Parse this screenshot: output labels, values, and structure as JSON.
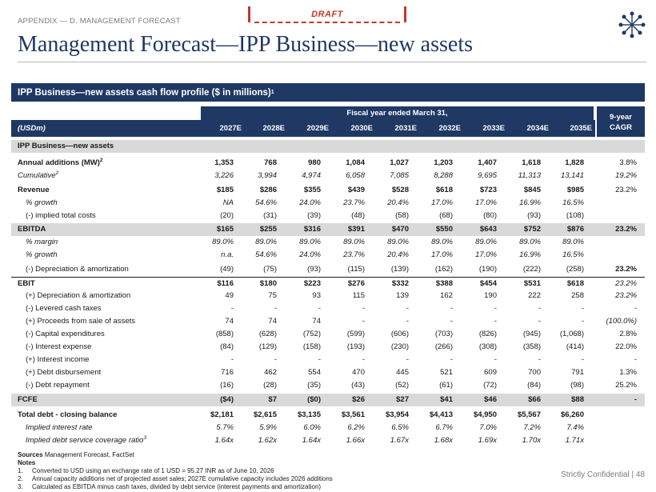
{
  "header": {
    "breadcrumb": "APPENDIX — D. MANAGEMENT FORECAST",
    "draft_label": "DRAFT",
    "title": "Management Forecast—IPP Business—new assets"
  },
  "section": {
    "title": "IPP Business—new assets cash flow profile ($ in millions)",
    "sup": "1"
  },
  "table": {
    "fiscal_label": "Fiscal year ended March 31,",
    "cagr_label_1": "9-year",
    "cagr_label_2": "CAGR",
    "unit_label": "(USDm)",
    "years": [
      "2027E",
      "2028E",
      "2029E",
      "2030E",
      "2031E",
      "2032E",
      "2033E",
      "2034E",
      "2035E"
    ],
    "group_label": "IPP Business—new assets",
    "rows": [
      {
        "label": "Annual additions (MW)",
        "sup": "2",
        "style": "bold-label",
        "values": [
          "1,353",
          "768",
          "980",
          "1,084",
          "1,027",
          "1,203",
          "1,407",
          "1,618",
          "1,828"
        ],
        "cagr": "3.8%"
      },
      {
        "label": "Cumulative",
        "sup": "2",
        "style": "ital",
        "values": [
          "3,226",
          "3,994",
          "4,974",
          "6,058",
          "7,085",
          "8,288",
          "9,695",
          "11,313",
          "13,141"
        ],
        "cagr": "19.2%"
      },
      {
        "label": "Revenue",
        "style": "bold",
        "values": [
          "$185",
          "$286",
          "$355",
          "$439",
          "$528",
          "$618",
          "$723",
          "$845",
          "$985"
        ],
        "cagr": "23.2%"
      },
      {
        "label": "% growth",
        "style": "ital-indent",
        "values": [
          "NA",
          "54.6%",
          "24.0%",
          "23.7%",
          "20.4%",
          "17.0%",
          "17.0%",
          "16.9%",
          "16.5%"
        ],
        "cagr": ""
      },
      {
        "label": "(-) implied total costs",
        "style": "indent",
        "values": [
          "(20)",
          "(31)",
          "(39)",
          "(48)",
          "(58)",
          "(68)",
          "(80)",
          "(93)",
          "(108)"
        ],
        "cagr": ""
      },
      {
        "label": "EBITDA",
        "style": "bold-hl",
        "values": [
          "$165",
          "$255",
          "$316",
          "$391",
          "$470",
          "$550",
          "$643",
          "$752",
          "$876"
        ],
        "cagr": "23.2%",
        "cagr_style": "bold"
      },
      {
        "label": "% margin",
        "style": "ital-indent",
        "values": [
          "89.0%",
          "89.0%",
          "89.0%",
          "89.0%",
          "89.0%",
          "89.0%",
          "89.0%",
          "89.0%",
          "89.0%"
        ],
        "cagr": ""
      },
      {
        "label": "% growth",
        "style": "ital-indent",
        "values": [
          "n.a.",
          "54.6%",
          "24.0%",
          "23.7%",
          "20.4%",
          "17.0%",
          "17.0%",
          "16.9%",
          "16.5%"
        ],
        "cagr": ""
      },
      {
        "label": "(-) Depreciation & amortization",
        "style": "indent",
        "values": [
          "(49)",
          "(75)",
          "(93)",
          "(115)",
          "(139)",
          "(162)",
          "(190)",
          "(222)",
          "(258)"
        ],
        "cagr": "23.2%",
        "cagr_style": "bold"
      },
      {
        "label": "EBIT",
        "style": "bold-topline",
        "values": [
          "$116",
          "$180",
          "$223",
          "$276",
          "$332",
          "$388",
          "$454",
          "$531",
          "$618"
        ],
        "cagr": "23.2%",
        "cagr_style": "ital"
      },
      {
        "label": "(+) Depreciation & amortization",
        "style": "indent",
        "values": [
          "49",
          "75",
          "93",
          "115",
          "139",
          "162",
          "190",
          "222",
          "258"
        ],
        "cagr": "23.2%",
        "cagr_style": "ital"
      },
      {
        "label": "(-) Levered cash taxes",
        "style": "indent",
        "values": [
          "-",
          "-",
          "-",
          "-",
          "-",
          "-",
          "-",
          "-",
          "-"
        ],
        "cagr": "-"
      },
      {
        "label": "(+) Proceeds from sale of assets",
        "style": "indent",
        "values": [
          "74",
          "74",
          "74",
          "-",
          "-",
          "-",
          "-",
          "-",
          "-"
        ],
        "cagr": "(100.0%)",
        "cagr_style": "ital"
      },
      {
        "label": "(-) Capital expenditures",
        "style": "indent",
        "values": [
          "(858)",
          "(628)",
          "(752)",
          "(599)",
          "(606)",
          "(703)",
          "(826)",
          "(945)",
          "(1,068)"
        ],
        "cagr": "2.8%"
      },
      {
        "label": "(-) Interest expense",
        "style": "indent",
        "values": [
          "(84)",
          "(129)",
          "(158)",
          "(193)",
          "(230)",
          "(266)",
          "(308)",
          "(358)",
          "(414)"
        ],
        "cagr": "22.0%"
      },
      {
        "label": "(+) Interest income",
        "style": "indent",
        "values": [
          "-",
          "-",
          "-",
          "-",
          "-",
          "-",
          "-",
          "-",
          "-"
        ],
        "cagr": "-"
      },
      {
        "label": "(+) Debt disbursement",
        "style": "indent",
        "values": [
          "716",
          "462",
          "554",
          "470",
          "445",
          "521",
          "609",
          "700",
          "791"
        ],
        "cagr": "1.3%"
      },
      {
        "label": "(-) Debt repayment",
        "style": "indent",
        "values": [
          "(16)",
          "(28)",
          "(35)",
          "(43)",
          "(52)",
          "(61)",
          "(72)",
          "(84)",
          "(98)"
        ],
        "cagr": "25.2%"
      },
      {
        "label": "FCFE",
        "style": "bold-hl",
        "values": [
          "($4)",
          "$7",
          "($0)",
          "$26",
          "$27",
          "$41",
          "$46",
          "$66",
          "$88"
        ],
        "cagr": "-",
        "cagr_style": "bold"
      },
      {
        "label": "Total debt - closing balance",
        "style": "bold",
        "values": [
          "$2,181",
          "$2,615",
          "$3,135",
          "$3,561",
          "$3,954",
          "$4,413",
          "$4,950",
          "$5,567",
          "$6,260"
        ],
        "cagr": ""
      },
      {
        "label": "Implied interest rate",
        "style": "ital-indent",
        "values": [
          "5.7%",
          "5.9%",
          "6.0%",
          "6.2%",
          "6.5%",
          "6.7%",
          "7.0%",
          "7.2%",
          "7.4%"
        ],
        "cagr": ""
      },
      {
        "label": "Implied debt service coverage ratio",
        "sup": "3",
        "style": "ital-indent",
        "values": [
          "1.64x",
          "1.62x",
          "1.64x",
          "1.66x",
          "1.67x",
          "1.68x",
          "1.69x",
          "1.70x",
          "1.71x"
        ],
        "cagr": ""
      }
    ]
  },
  "footer": {
    "sources_label": "Sources",
    "sources_text": "Management Forecast, FactSet",
    "notes_label": "Notes",
    "notes": [
      {
        "n": "1.",
        "text": "Converted to USD using an exchange rate of 1 USD = 95.27 INR as of June 10, 2026"
      },
      {
        "n": "2.",
        "text": "Annual capacity additions net of projected asset sales; 2027E cumulative capacity includes 2026 additions"
      },
      {
        "n": "3.",
        "text": "Calculated as EBITDA minus cash taxes, divided by debt service (interest payments and amortization)"
      }
    ],
    "confidential": "Strictly Confidential | 48"
  }
}
